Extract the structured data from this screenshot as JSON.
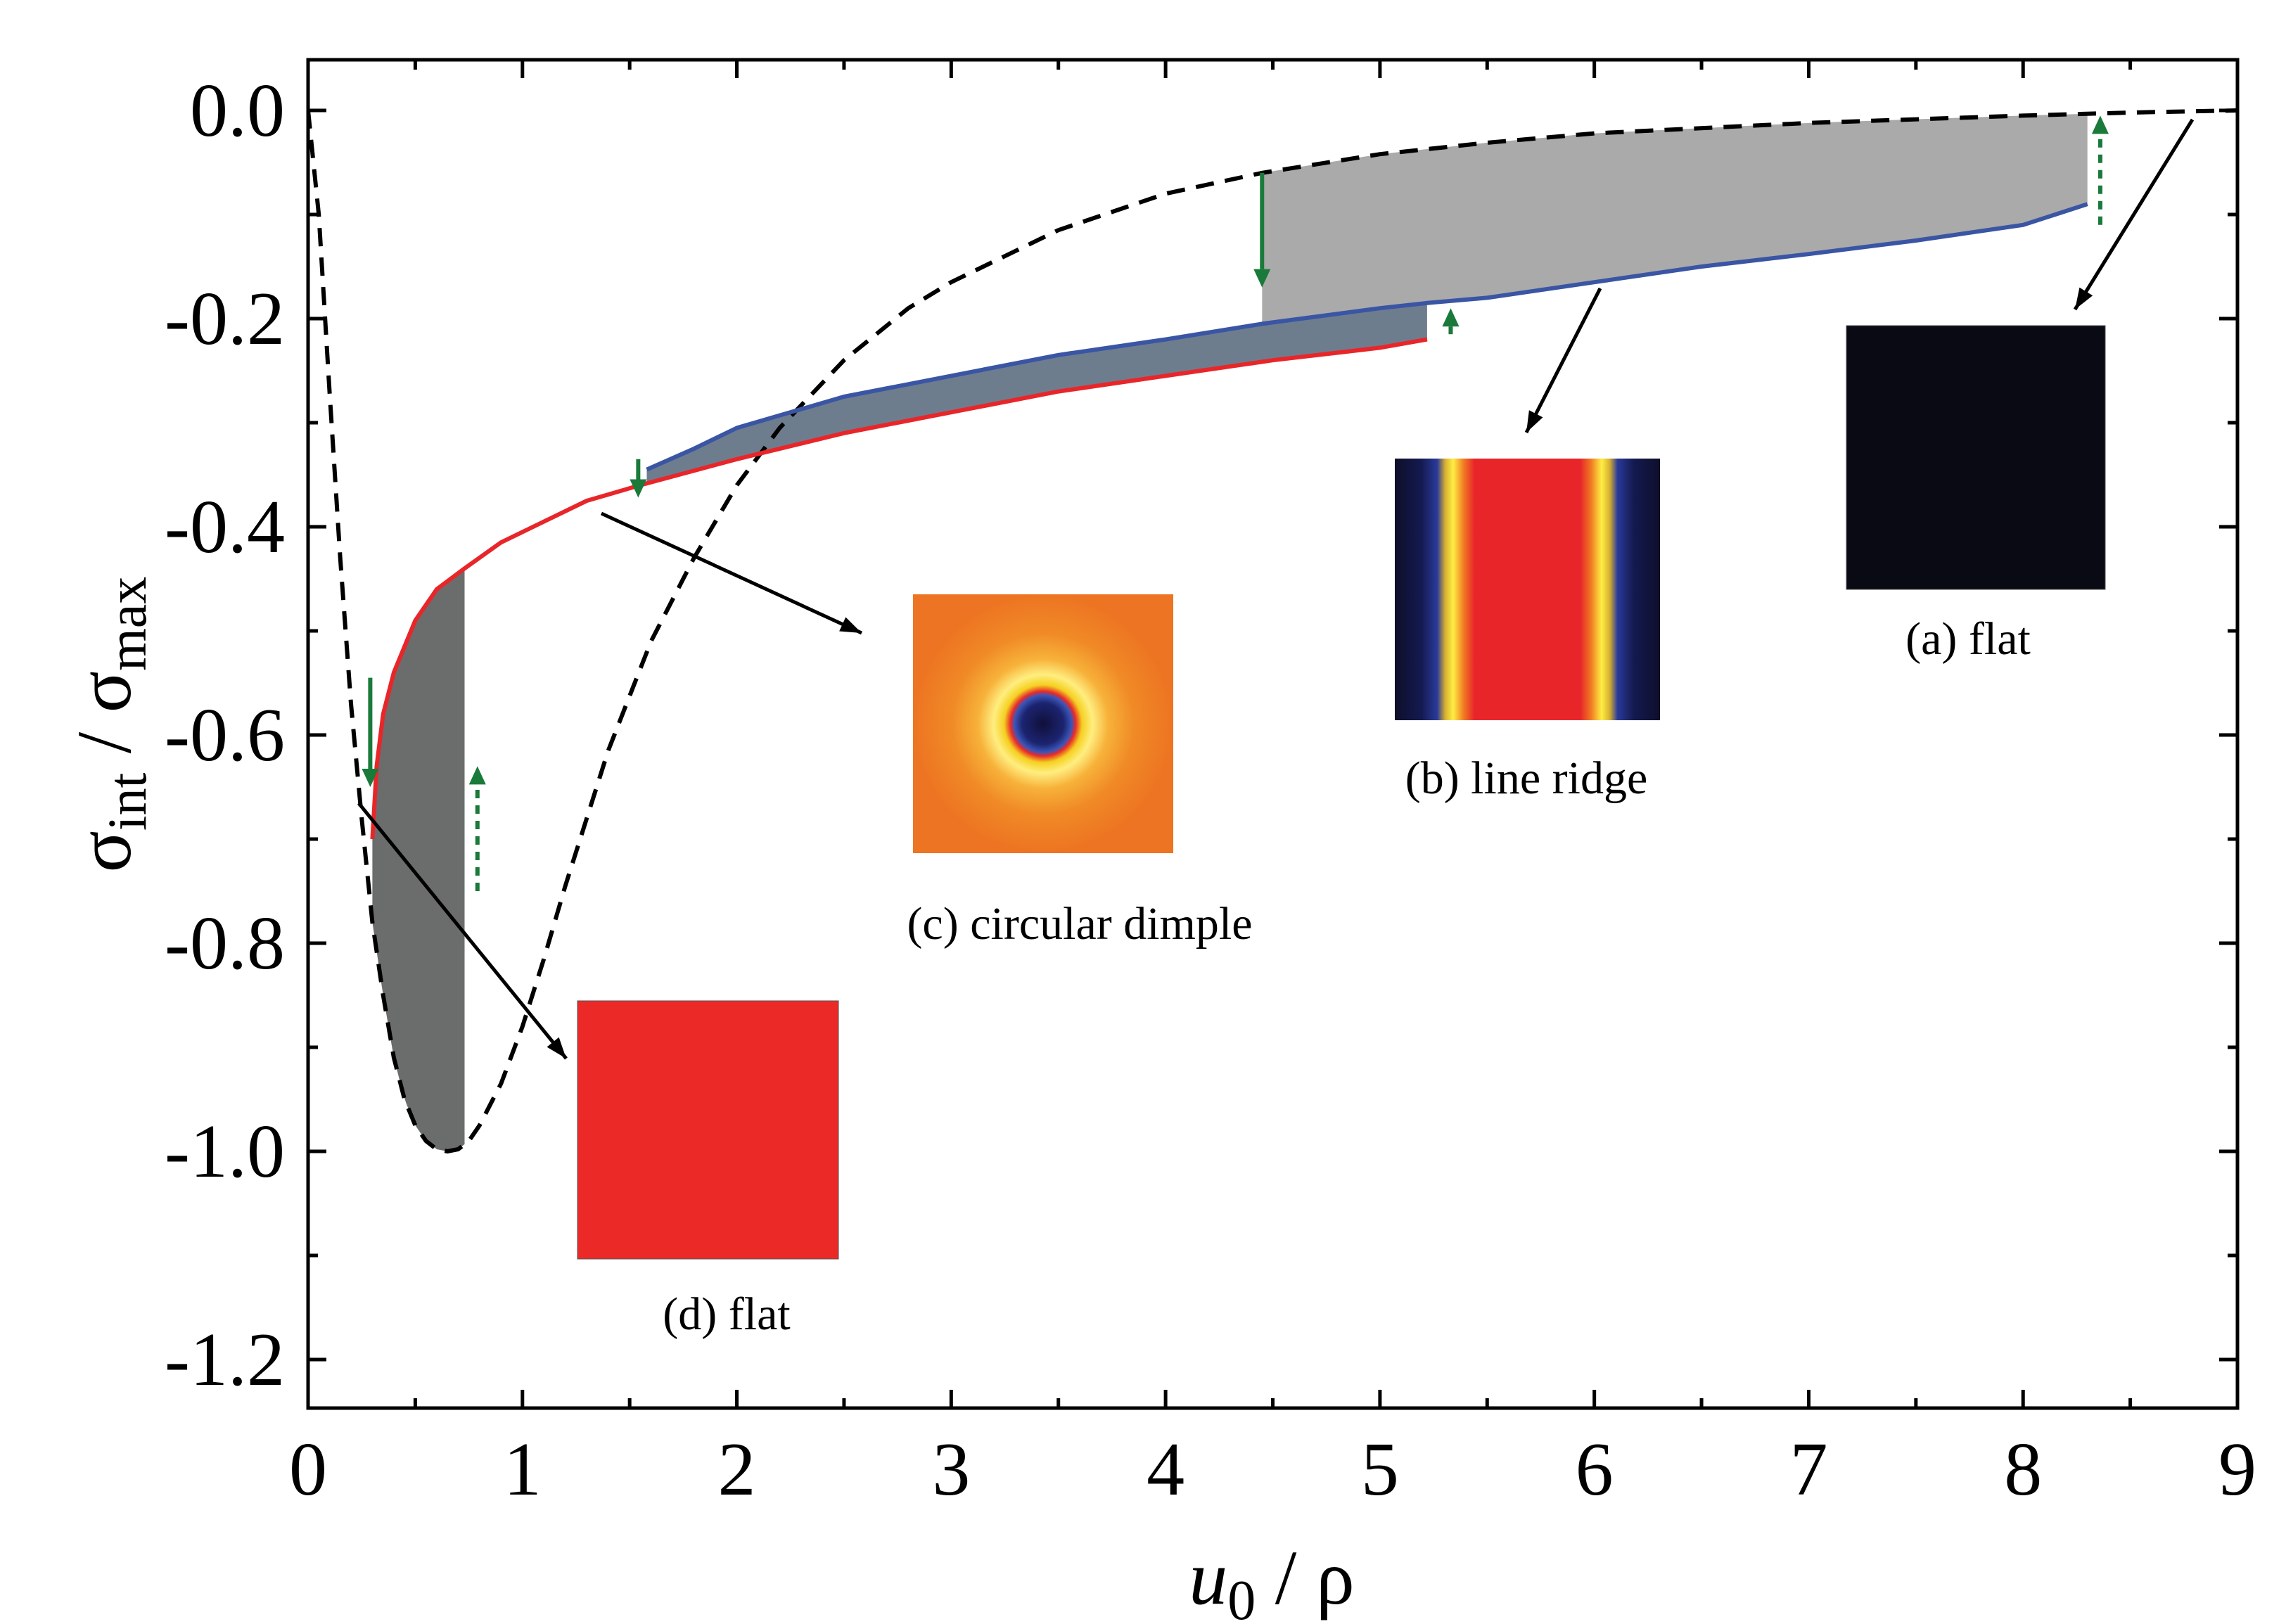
{
  "chart_data": {
    "type": "line",
    "xlabel": {
      "main": "u",
      "sub": "0",
      "tail": " / ρ"
    },
    "ylabel": {
      "a": "σ",
      "a_sub": "int",
      "mid": " / ",
      "b": "σ",
      "b_sub": "max"
    },
    "xlim": [
      0,
      9
    ],
    "ylim": [
      -1.25,
      0.05
    ],
    "xticks": [
      "0",
      "1",
      "2",
      "3",
      "4",
      "5",
      "6",
      "7",
      "8",
      "9"
    ],
    "xtick_values": [
      0,
      1,
      2,
      3,
      4,
      5,
      6,
      7,
      8,
      9
    ],
    "yticks": [
      "0.0",
      "-0.2",
      "-0.4",
      "-0.6",
      "-0.8",
      "-1.0",
      "-1.2"
    ],
    "ytick_values": [
      0.0,
      -0.2,
      -0.4,
      -0.6,
      -0.8,
      -1.0,
      -1.2
    ],
    "grid": false,
    "series": [
      {
        "name": "flat (dashed)",
        "color": "#000000",
        "style": "dashed",
        "points": [
          [
            0,
            0
          ],
          [
            0.05,
            -0.1
          ],
          [
            0.1,
            -0.27
          ],
          [
            0.15,
            -0.43
          ],
          [
            0.2,
            -0.57
          ],
          [
            0.25,
            -0.68
          ],
          [
            0.3,
            -0.78
          ],
          [
            0.35,
            -0.85
          ],
          [
            0.4,
            -0.91
          ],
          [
            0.45,
            -0.95
          ],
          [
            0.5,
            -0.975
          ],
          [
            0.55,
            -0.99
          ],
          [
            0.6,
            -0.998
          ],
          [
            0.65,
            -1.0
          ],
          [
            0.7,
            -0.998
          ],
          [
            0.75,
            -0.99
          ],
          [
            0.8,
            -0.975
          ],
          [
            0.9,
            -0.935
          ],
          [
            1.0,
            -0.88
          ],
          [
            1.1,
            -0.815
          ],
          [
            1.2,
            -0.745
          ],
          [
            1.4,
            -0.615
          ],
          [
            1.6,
            -0.51
          ],
          [
            1.8,
            -0.43
          ],
          [
            2.0,
            -0.36
          ],
          [
            2.2,
            -0.305
          ],
          [
            2.5,
            -0.24
          ],
          [
            2.8,
            -0.19
          ],
          [
            3.0,
            -0.165
          ],
          [
            3.5,
            -0.115
          ],
          [
            4.0,
            -0.08
          ],
          [
            4.45,
            -0.06
          ],
          [
            5.0,
            -0.042
          ],
          [
            5.5,
            -0.031
          ],
          [
            6.0,
            -0.022
          ],
          [
            7.0,
            -0.012
          ],
          [
            8.0,
            -0.005
          ],
          [
            8.5,
            -0.002
          ],
          [
            9.0,
            0
          ]
        ]
      },
      {
        "name": "circular dimple (red)",
        "color": "#e8262a",
        "style": "solid",
        "points": [
          [
            0.3,
            -0.7
          ],
          [
            0.32,
            -0.63
          ],
          [
            0.35,
            -0.58
          ],
          [
            0.4,
            -0.54
          ],
          [
            0.5,
            -0.49
          ],
          [
            0.6,
            -0.46
          ],
          [
            0.73,
            -0.44
          ],
          [
            0.9,
            -0.415
          ],
          [
            1.1,
            -0.395
          ],
          [
            1.3,
            -0.375
          ],
          [
            1.55,
            -0.36
          ],
          [
            2.0,
            -0.335
          ],
          [
            2.5,
            -0.31
          ],
          [
            3.0,
            -0.29
          ],
          [
            3.5,
            -0.27
          ],
          [
            4.0,
            -0.255
          ],
          [
            4.5,
            -0.24
          ],
          [
            5.0,
            -0.228
          ],
          [
            5.22,
            -0.22
          ]
        ]
      },
      {
        "name": "line ridge (blue)",
        "color": "#3a55a4",
        "style": "solid",
        "points": [
          [
            1.58,
            -0.345
          ],
          [
            1.8,
            -0.325
          ],
          [
            2.0,
            -0.305
          ],
          [
            2.5,
            -0.275
          ],
          [
            3.0,
            -0.255
          ],
          [
            3.5,
            -0.235
          ],
          [
            4.0,
            -0.22
          ],
          [
            4.45,
            -0.205
          ],
          [
            5.0,
            -0.19
          ],
          [
            5.22,
            -0.185
          ],
          [
            5.5,
            -0.18
          ],
          [
            6.0,
            -0.165
          ],
          [
            6.5,
            -0.15
          ],
          [
            7.0,
            -0.138
          ],
          [
            7.5,
            -0.125
          ],
          [
            8.0,
            -0.11
          ],
          [
            8.3,
            -0.09
          ]
        ]
      }
    ],
    "annotations": [
      {
        "label": "(a) flat",
        "color": "#0a0a14"
      },
      {
        "label": "(b) line ridge",
        "color": "#e8262a"
      },
      {
        "label": "(c) circular dimple",
        "color": "#f07a22"
      },
      {
        "label": "(d) flat",
        "color": "#eb2a27"
      }
    ],
    "transition_arrows": {
      "color": "#1a7a3a"
    },
    "shading": {
      "light": "#aaaaaa",
      "slate": "#6e7d8e",
      "dark": "#6b6d6c"
    }
  }
}
